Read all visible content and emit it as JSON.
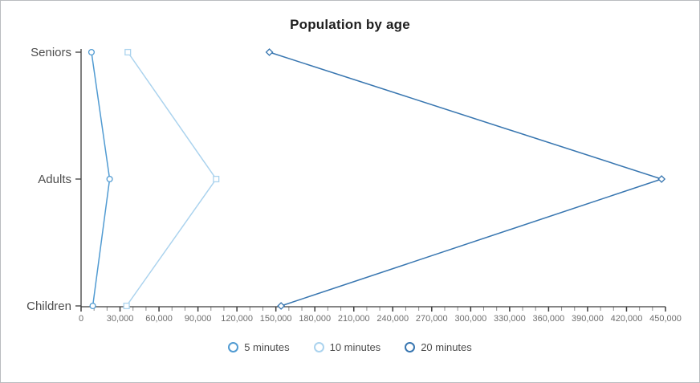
{
  "chart_data": {
    "type": "line",
    "orientation": "horizontal-categories",
    "title": "Population by age",
    "categories": [
      "Seniors",
      "Adults",
      "Children"
    ],
    "series": [
      {
        "name": "5 minutes",
        "marker": "circle",
        "color": "#519bd2",
        "values": [
          8000,
          22000,
          9000
        ]
      },
      {
        "name": "10 minutes",
        "marker": "square",
        "color": "#abd3ee",
        "values": [
          36000,
          104000,
          35000
        ]
      },
      {
        "name": "20 minutes",
        "marker": "diamond",
        "color": "#3876b0",
        "values": [
          145000,
          447000,
          154000
        ]
      }
    ],
    "xlabel": "",
    "ylabel": "",
    "xlim": [
      0,
      450000
    ],
    "x_major_tick_interval": 30000,
    "x_minor_tick_interval": 10000,
    "x_tick_labels": [
      "0",
      "30,000",
      "60,000",
      "90,000",
      "120,000",
      "150,000",
      "180,000",
      "210,000",
      "240,000",
      "270,000",
      "300,000",
      "330,000",
      "360,000",
      "390,000",
      "420,000",
      "450,000"
    ],
    "grid": false,
    "legend_position": "bottom"
  },
  "colors": {
    "axis": "#3c3c3c",
    "minor_tick": "#8c8c8c",
    "tick_label": "#6e6e6e",
    "category_label": "#4d4d4d",
    "title": "#1e1e1e",
    "frame_border": "#b9bcbf",
    "background": "#ffffff"
  }
}
